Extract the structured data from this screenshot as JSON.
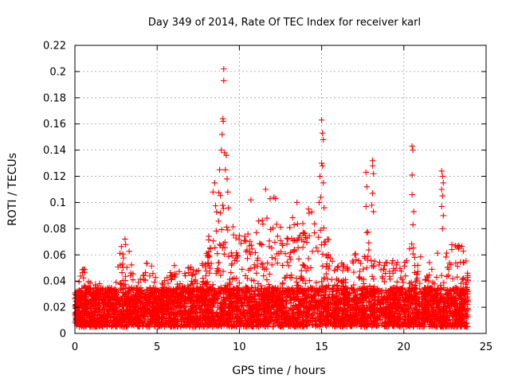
{
  "chart_data": {
    "type": "scatter",
    "title": "Day 349 of 2014, Rate Of TEC Index for receiver karl",
    "xlabel": "GPS time / hours",
    "ylabel": "ROTI / TECUs",
    "xlim": [
      0,
      25
    ],
    "ylim": [
      0,
      0.22
    ],
    "xticks": [
      0,
      5,
      10,
      15,
      20,
      25
    ],
    "xtick_labels": [
      "0",
      "5",
      "10",
      "15",
      "20",
      "25"
    ],
    "yticks": [
      0,
      0.02,
      0.04,
      0.06,
      0.08,
      0.1,
      0.12,
      0.14,
      0.16,
      0.18,
      0.2,
      0.22
    ],
    "ytick_labels": [
      "0",
      "0.02",
      "0.04",
      "0.06",
      "0.08",
      "0.1",
      "0.12",
      "0.14",
      "0.16",
      "0.18",
      "0.2",
      "0.22"
    ],
    "grid": true,
    "marker": "+",
    "marker_color": "#ff0000",
    "series": [
      {
        "name": "ROTI",
        "x_range": [
          0,
          23.9
        ],
        "baseline_range": [
          0.005,
          0.035
        ],
        "envelope": [
          [
            0.0,
            0.035
          ],
          [
            0.3,
            0.045
          ],
          [
            0.6,
            0.053
          ],
          [
            1.0,
            0.04
          ],
          [
            1.5,
            0.038
          ],
          [
            2.0,
            0.033
          ],
          [
            2.5,
            0.045
          ],
          [
            2.8,
            0.075
          ],
          [
            3.2,
            0.075
          ],
          [
            3.6,
            0.042
          ],
          [
            4.0,
            0.045
          ],
          [
            4.5,
            0.058
          ],
          [
            5.0,
            0.04
          ],
          [
            5.5,
            0.042
          ],
          [
            6.0,
            0.053
          ],
          [
            6.5,
            0.048
          ],
          [
            7.0,
            0.052
          ],
          [
            7.5,
            0.05
          ],
          [
            8.0,
            0.06
          ],
          [
            8.3,
            0.1
          ],
          [
            8.6,
            0.1
          ],
          [
            9.0,
            0.12
          ],
          [
            9.5,
            0.09
          ],
          [
            10.0,
            0.075
          ],
          [
            10.5,
            0.08
          ],
          [
            11.0,
            0.09
          ],
          [
            11.5,
            0.1
          ],
          [
            12.0,
            0.105
          ],
          [
            12.5,
            0.085
          ],
          [
            13.0,
            0.08
          ],
          [
            13.5,
            0.1
          ],
          [
            14.0,
            0.09
          ],
          [
            14.5,
            0.095
          ],
          [
            15.0,
            0.09
          ],
          [
            15.5,
            0.07
          ],
          [
            16.0,
            0.06
          ],
          [
            16.5,
            0.055
          ],
          [
            17.0,
            0.06
          ],
          [
            17.5,
            0.07
          ],
          [
            18.0,
            0.085
          ],
          [
            18.5,
            0.07
          ],
          [
            19.0,
            0.06
          ],
          [
            19.5,
            0.055
          ],
          [
            20.0,
            0.06
          ],
          [
            20.5,
            0.07
          ],
          [
            21.0,
            0.06
          ],
          [
            21.5,
            0.055
          ],
          [
            22.0,
            0.065
          ],
          [
            22.5,
            0.06
          ],
          [
            23.0,
            0.07
          ],
          [
            23.5,
            0.07
          ],
          [
            23.9,
            0.055
          ]
        ],
        "outliers": [
          [
            9.05,
            0.202
          ],
          [
            9.05,
            0.193
          ],
          [
            9.0,
            0.164
          ],
          [
            9.02,
            0.162
          ],
          [
            9.1,
            0.138
          ],
          [
            9.2,
            0.136
          ],
          [
            8.9,
            0.14
          ],
          [
            9.15,
            0.125
          ],
          [
            8.95,
            0.152
          ],
          [
            9.25,
            0.118
          ],
          [
            8.8,
            0.125
          ],
          [
            9.3,
            0.108
          ],
          [
            15.0,
            0.163
          ],
          [
            15.05,
            0.153
          ],
          [
            15.1,
            0.148
          ],
          [
            15.0,
            0.13
          ],
          [
            15.05,
            0.128
          ],
          [
            14.9,
            0.12
          ],
          [
            15.1,
            0.115
          ],
          [
            14.95,
            0.104
          ],
          [
            15.15,
            0.096
          ],
          [
            14.85,
            0.1
          ],
          [
            17.7,
            0.123
          ],
          [
            17.75,
            0.112
          ],
          [
            17.7,
            0.097
          ],
          [
            18.1,
            0.132
          ],
          [
            18.1,
            0.128
          ],
          [
            18.15,
            0.122
          ],
          [
            18.1,
            0.107
          ],
          [
            18.05,
            0.098
          ],
          [
            18.15,
            0.093
          ],
          [
            20.5,
            0.143
          ],
          [
            20.55,
            0.14
          ],
          [
            20.5,
            0.121
          ],
          [
            20.5,
            0.106
          ],
          [
            20.6,
            0.093
          ],
          [
            20.55,
            0.083
          ],
          [
            22.3,
            0.124
          ],
          [
            22.35,
            0.12
          ],
          [
            22.4,
            0.115
          ],
          [
            22.3,
            0.11
          ],
          [
            22.35,
            0.105
          ],
          [
            22.3,
            0.097
          ],
          [
            22.4,
            0.09
          ],
          [
            22.35,
            0.08
          ],
          [
            12.1,
            0.104
          ],
          [
            12.2,
            0.103
          ],
          [
            11.6,
            0.11
          ],
          [
            13.5,
            0.1
          ],
          [
            14.2,
            0.095
          ],
          [
            8.4,
            0.108
          ],
          [
            8.5,
            0.115
          ],
          [
            10.7,
            0.102
          ]
        ]
      }
    ]
  }
}
